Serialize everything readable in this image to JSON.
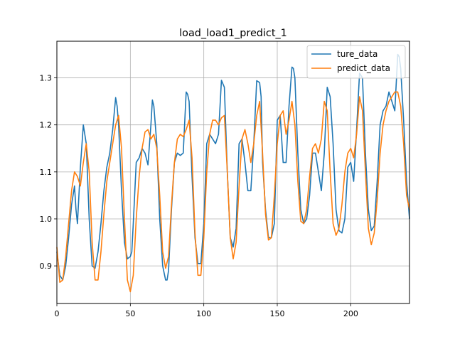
{
  "chart_data": {
    "type": "line",
    "title": "load_load1_predict_1",
    "xlabel": "",
    "ylabel": "",
    "xlim": [
      0,
      240
    ],
    "ylim": [
      0.82,
      1.378
    ],
    "xticks": [
      0,
      50,
      100,
      150,
      200
    ],
    "yticks": [
      0.9,
      1.0,
      1.1,
      1.2,
      1.3
    ],
    "grid": true,
    "legend": "top-right",
    "series": [
      {
        "name": "ture_data",
        "color": "#1f77b4",
        "x": [
          0,
          2,
          4,
          6,
          8,
          10,
          12,
          13,
          14,
          16,
          18,
          20,
          22,
          24,
          26,
          28,
          30,
          32,
          34,
          36,
          38,
          40,
          41,
          42,
          44,
          46,
          48,
          50,
          51,
          52,
          54,
          56,
          58,
          60,
          62,
          64,
          65,
          66,
          68,
          70,
          72,
          74,
          75,
          76,
          78,
          80,
          82,
          84,
          86,
          88,
          89,
          90,
          92,
          94,
          96,
          98,
          100,
          102,
          104,
          106,
          108,
          110,
          112,
          114,
          116,
          118,
          120,
          122,
          124,
          126,
          128,
          130,
          132,
          134,
          136,
          138,
          139,
          140,
          142,
          144,
          146,
          148,
          150,
          152,
          154,
          156,
          158,
          160,
          161,
          162,
          164,
          166,
          168,
          170,
          172,
          174,
          176,
          178,
          180,
          182,
          184,
          186,
          188,
          190,
          192,
          194,
          196,
          198,
          200,
          202,
          204,
          206,
          208,
          210,
          212,
          214,
          216,
          218,
          220,
          222,
          224,
          226,
          228,
          230,
          232,
          233,
          234,
          236,
          238,
          240
        ],
        "values": [
          0.93,
          0.88,
          0.87,
          0.9,
          0.96,
          1.03,
          1.07,
          1.02,
          0.99,
          1.11,
          1.2,
          1.16,
          1.0,
          0.9,
          0.895,
          0.93,
          0.99,
          1.06,
          1.11,
          1.14,
          1.19,
          1.258,
          1.24,
          1.2,
          1.06,
          0.95,
          0.915,
          0.92,
          0.93,
          0.99,
          1.12,
          1.13,
          1.15,
          1.14,
          1.115,
          1.2,
          1.253,
          1.24,
          1.16,
          1.0,
          0.9,
          0.87,
          0.87,
          0.89,
          1.02,
          1.12,
          1.14,
          1.135,
          1.14,
          1.27,
          1.265,
          1.25,
          1.09,
          0.96,
          0.905,
          0.905,
          0.99,
          1.16,
          1.18,
          1.17,
          1.16,
          1.18,
          1.295,
          1.28,
          1.1,
          0.96,
          0.94,
          0.98,
          1.16,
          1.17,
          1.12,
          1.06,
          1.06,
          1.16,
          1.294,
          1.29,
          1.26,
          1.12,
          1.02,
          0.96,
          0.96,
          0.99,
          1.21,
          1.22,
          1.12,
          1.12,
          1.24,
          1.323,
          1.32,
          1.3,
          1.14,
          1.02,
          0.99,
          1.0,
          1.05,
          1.14,
          1.14,
          1.1,
          1.06,
          1.14,
          1.28,
          1.26,
          1.16,
          1.02,
          0.975,
          0.97,
          1.0,
          1.11,
          1.12,
          1.08,
          1.19,
          1.31,
          1.3,
          1.14,
          1.02,
          0.975,
          0.985,
          1.08,
          1.2,
          1.23,
          1.24,
          1.27,
          1.25,
          1.23,
          1.35,
          1.345,
          1.32,
          1.21,
          1.08,
          1.0
        ]
      },
      {
        "name": "predict_data",
        "color": "#ff7f0e",
        "x": [
          0,
          2,
          4,
          6,
          8,
          10,
          12,
          14,
          16,
          18,
          20,
          22,
          24,
          26,
          28,
          30,
          32,
          34,
          36,
          38,
          40,
          42,
          44,
          46,
          48,
          50,
          52,
          54,
          56,
          58,
          60,
          62,
          64,
          66,
          68,
          70,
          72,
          74,
          76,
          78,
          80,
          82,
          84,
          86,
          88,
          90,
          92,
          94,
          96,
          98,
          100,
          102,
          104,
          106,
          108,
          110,
          112,
          114,
          116,
          118,
          120,
          122,
          124,
          126,
          128,
          130,
          132,
          134,
          136,
          138,
          140,
          142,
          144,
          146,
          148,
          150,
          152,
          154,
          156,
          158,
          160,
          162,
          164,
          166,
          168,
          170,
          172,
          174,
          176,
          178,
          180,
          182,
          184,
          186,
          188,
          190,
          192,
          194,
          196,
          198,
          200,
          202,
          204,
          206,
          208,
          210,
          212,
          214,
          216,
          218,
          220,
          222,
          224,
          226,
          228,
          230,
          232,
          234,
          236,
          238,
          240
        ],
        "values": [
          0.94,
          0.865,
          0.87,
          0.92,
          0.99,
          1.06,
          1.1,
          1.09,
          1.07,
          1.12,
          1.16,
          1.1,
          0.95,
          0.87,
          0.87,
          0.93,
          1.01,
          1.08,
          1.12,
          1.16,
          1.2,
          1.22,
          1.15,
          1.0,
          0.87,
          0.845,
          0.88,
          1.0,
          1.09,
          1.15,
          1.185,
          1.19,
          1.17,
          1.18,
          1.15,
          1.05,
          0.93,
          0.895,
          0.92,
          1.03,
          1.12,
          1.17,
          1.18,
          1.175,
          1.19,
          1.21,
          1.13,
          0.97,
          0.88,
          0.88,
          0.96,
          1.1,
          1.18,
          1.21,
          1.21,
          1.2,
          1.215,
          1.22,
          1.1,
          0.96,
          0.915,
          0.95,
          1.07,
          1.17,
          1.19,
          1.16,
          1.12,
          1.16,
          1.22,
          1.25,
          1.14,
          1.01,
          0.955,
          0.96,
          1.05,
          1.16,
          1.22,
          1.23,
          1.18,
          1.21,
          1.25,
          1.2,
          1.08,
          0.995,
          0.99,
          1.02,
          1.09,
          1.15,
          1.16,
          1.14,
          1.17,
          1.25,
          1.23,
          1.1,
          0.99,
          0.965,
          0.98,
          1.03,
          1.1,
          1.14,
          1.15,
          1.13,
          1.18,
          1.26,
          1.23,
          1.1,
          0.98,
          0.945,
          0.97,
          1.04,
          1.14,
          1.2,
          1.23,
          1.25,
          1.26,
          1.27,
          1.27,
          1.24,
          1.16,
          1.05,
          1.02
        ]
      }
    ]
  }
}
